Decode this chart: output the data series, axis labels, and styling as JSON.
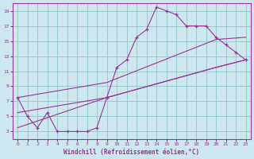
{
  "xlabel": "Windchill (Refroidissement éolien,°C)",
  "bg_color": "#cce8ee",
  "grid_color": "#99cccc",
  "line_color": "#993399",
  "xlim": [
    -0.5,
    23.5
  ],
  "ylim": [
    2,
    20
  ],
  "xticks": [
    0,
    1,
    2,
    3,
    4,
    5,
    6,
    7,
    8,
    9,
    10,
    11,
    12,
    13,
    14,
    15,
    16,
    17,
    18,
    19,
    20,
    21,
    22,
    23
  ],
  "yticks": [
    3,
    5,
    7,
    9,
    11,
    13,
    15,
    17,
    19
  ],
  "series": [
    {
      "x": [
        0,
        1,
        2,
        3,
        4,
        5,
        6,
        7,
        8,
        9,
        10,
        11,
        12,
        13,
        14,
        15,
        16,
        17,
        18,
        19,
        20,
        21,
        22,
        23
      ],
      "y": [
        7.5,
        5,
        3.5,
        5.5,
        3,
        3,
        3,
        3,
        3.5,
        7.5,
        11.5,
        12.5,
        15.5,
        16.5,
        19.5,
        19,
        18.5,
        17,
        17,
        17,
        15.5,
        14.5,
        13.5,
        12.5
      ],
      "marker": true
    },
    {
      "x": [
        0,
        9,
        20,
        23
      ],
      "y": [
        7.5,
        9.5,
        15.2,
        15.5
      ],
      "marker": false
    },
    {
      "x": [
        0,
        9,
        20,
        23
      ],
      "y": [
        5.5,
        7.5,
        11.5,
        12.5
      ],
      "marker": false
    },
    {
      "x": [
        0,
        9,
        20,
        23
      ],
      "y": [
        3.5,
        7.5,
        11.5,
        12.5
      ],
      "marker": false
    }
  ]
}
